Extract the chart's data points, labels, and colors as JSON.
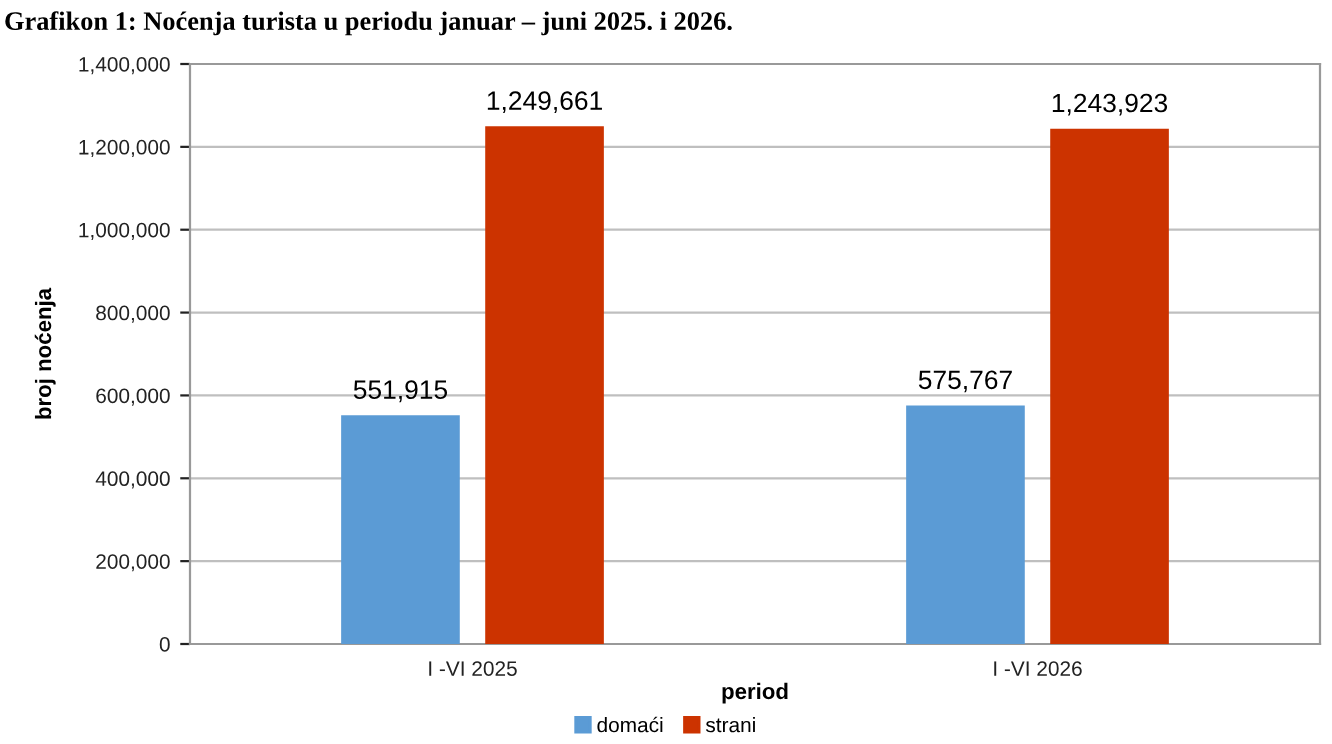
{
  "chart_data": {
    "type": "bar",
    "title": "Grafikon 1: Noćenja turista u periodu januar – juni 2025. i 2026.",
    "xlabel": "period",
    "ylabel": "broj noćenja",
    "categories": [
      "I -VI 2025",
      "I -VI 2026"
    ],
    "series": [
      {
        "name": "domaći",
        "color": "#5b9bd5",
        "values": [
          551915,
          575767
        ],
        "value_labels": [
          "551,915",
          "575,767"
        ]
      },
      {
        "name": "strani",
        "color": "#cc3300",
        "values": [
          1249661,
          1243923
        ],
        "value_labels": [
          "1,249,661",
          "1,243,923"
        ]
      }
    ],
    "ylim": [
      0,
      1400000
    ],
    "yticks": [
      0,
      {
        "value": 200000,
        "label": "200,000"
      },
      {
        "value": 400000,
        "label": "400,000"
      },
      {
        "value": 600000,
        "label": "600,000"
      },
      {
        "value": 800000,
        "label": "800,000"
      },
      {
        "value": 1000000,
        "label": "1,000,000"
      },
      {
        "value": 1200000,
        "label": "1,200,000"
      },
      {
        "value": 1400000,
        "label": "1,400,000"
      }
    ],
    "grid": "y",
    "legend": "bottom"
  }
}
